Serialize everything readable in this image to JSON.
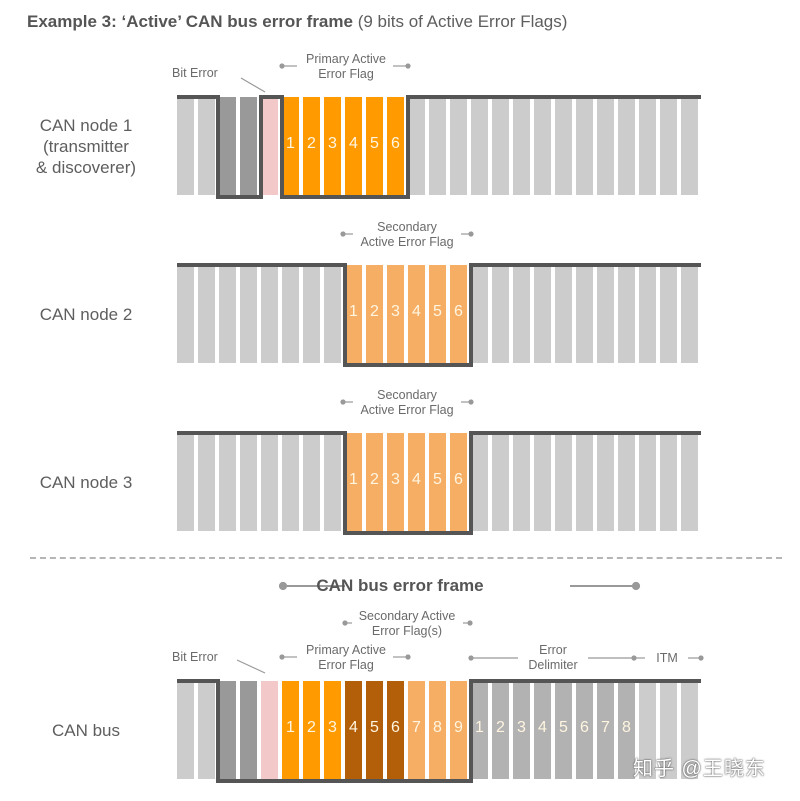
{
  "title": {
    "bold": "Example 3: ‘Active’ CAN bus error frame",
    "normal": " (9 bits of Active Error Flags)"
  },
  "colors": {
    "recessive_gray": "#cccccc",
    "bit_error_gray": "#999999",
    "bit_error_pink": "#f2c8c8",
    "primary_flag_orange": "#ff9b00",
    "secondary_flag_light_orange": "#f5ae64",
    "overlap_brown": "#b35f0a",
    "delimiter_gray": "#b2b2b2",
    "waveform_line": "#555555"
  },
  "rows": [
    {
      "label_lines": [
        "CAN node 1",
        "(transmitter",
        "& discoverer)"
      ],
      "annotations": [
        {
          "text": "Bit Error",
          "type": "pointer"
        },
        {
          "text_lines": [
            "Primary Active",
            "Error Flag"
          ],
          "type": "span"
        }
      ],
      "bits": [
        "g",
        "g",
        "d",
        "d",
        "p",
        "o",
        "o",
        "o",
        "o",
        "o",
        "o",
        "g",
        "g",
        "g",
        "g",
        "g",
        "g",
        "g",
        "g",
        "g",
        "g",
        "g",
        "g",
        "g",
        "g"
      ],
      "numbers": {
        "5": "1",
        "6": "2",
        "7": "3",
        "8": "4",
        "9": "5",
        "10": "6"
      }
    },
    {
      "label_lines": [
        "CAN node 2"
      ],
      "annotations": [
        {
          "text_lines": [
            "Secondary",
            "Active Error Flag"
          ],
          "type": "span"
        }
      ],
      "bits": [
        "g",
        "g",
        "g",
        "g",
        "g",
        "g",
        "g",
        "g",
        "l",
        "l",
        "l",
        "l",
        "l",
        "l",
        "g",
        "g",
        "g",
        "g",
        "g",
        "g",
        "g",
        "g",
        "g",
        "g",
        "g"
      ],
      "numbers": {
        "8": "1",
        "9": "2",
        "10": "3",
        "11": "4",
        "12": "5",
        "13": "6"
      }
    },
    {
      "label_lines": [
        "CAN node 3"
      ],
      "annotations": [
        {
          "text_lines": [
            "Secondary",
            "Active Error Flag"
          ],
          "type": "span"
        }
      ],
      "bits": [
        "g",
        "g",
        "g",
        "g",
        "g",
        "g",
        "g",
        "g",
        "l",
        "l",
        "l",
        "l",
        "l",
        "l",
        "g",
        "g",
        "g",
        "g",
        "g",
        "g",
        "g",
        "g",
        "g",
        "g",
        "g"
      ],
      "numbers": {
        "8": "1",
        "9": "2",
        "10": "3",
        "11": "4",
        "12": "5",
        "13": "6"
      }
    },
    {
      "label_lines": [
        "CAN bus"
      ],
      "annotations": [
        {
          "text": "Bit Error",
          "type": "pointer"
        },
        {
          "text_lines": [
            "Primary Active",
            "Error Flag"
          ],
          "type": "span"
        },
        {
          "text_lines": [
            "Secondary Active",
            "Error Flag(s)"
          ],
          "type": "span"
        },
        {
          "text_lines": [
            "Error",
            "Delimiter"
          ],
          "type": "span"
        },
        {
          "text": "ITM",
          "type": "span"
        }
      ],
      "bits": [
        "g",
        "g",
        "d",
        "d",
        "p",
        "o",
        "o",
        "o",
        "b",
        "b",
        "b",
        "l",
        "l",
        "l",
        "m",
        "m",
        "m",
        "m",
        "m",
        "m",
        "m",
        "m",
        "g",
        "g",
        "g"
      ],
      "numbers": {
        "5": "1",
        "6": "2",
        "7": "3",
        "8": "4",
        "9": "5",
        "10": "6",
        "11": "7",
        "12": "8",
        "13": "9",
        "14": "1",
        "15": "2",
        "16": "3",
        "17": "4",
        "18": "5",
        "19": "6",
        "20": "7",
        "21": "8"
      }
    }
  ],
  "divider": {
    "style": "dashed"
  },
  "frame_title": "CAN bus error frame",
  "watermark": "知乎 @王晓东"
}
